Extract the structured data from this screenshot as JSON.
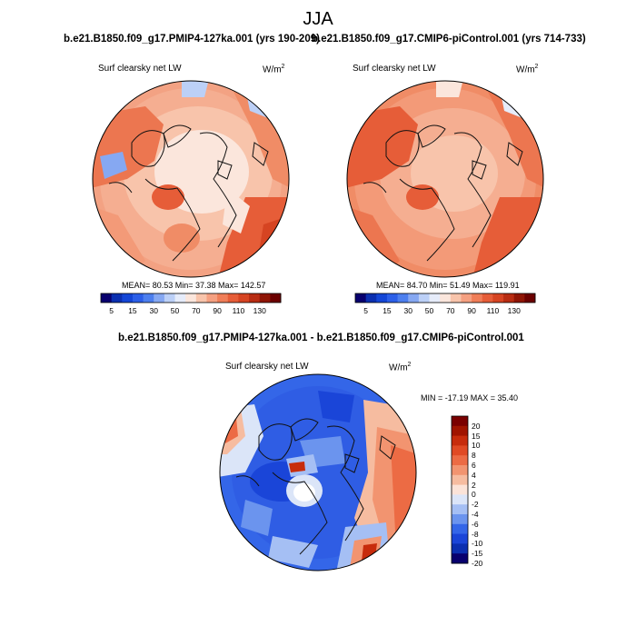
{
  "page": {
    "title": "JJA"
  },
  "panels": [
    {
      "case_title": "b.e21.B1850.f09_g17.PMIP4-127ka.001 (yrs 190-209)",
      "variable": "Surf clearsky net LW",
      "units_base": "W/m",
      "units_exp": "2",
      "stats": "MEAN=  80.53  Min=  37.38  Max= 142.57"
    },
    {
      "case_title": "b.e21.B1850.f09_g17.CMIP6-piControl.001 (yrs 714-733)",
      "variable": "Surf clearsky net LW",
      "units_base": "W/m",
      "units_exp": "2",
      "stats": "MEAN=  84.70  Min=  51.49  Max= 119.91"
    }
  ],
  "diff_panel": {
    "case_title": "b.e21.B1850.f09_g17.PMIP4-127ka.001 - b.e21.B1850.f09_g17.CMIP6-piControl.001",
    "variable": "Surf clearsky net LW",
    "units_base": "W/m",
    "units_exp": "2",
    "stats": "MIN = -17.19 MAX =  35.40"
  },
  "colors": {
    "abs_colorbar": [
      "#08006e",
      "#0b2fb0",
      "#1446d6",
      "#2c5fe8",
      "#4d7fee",
      "#86a8f2",
      "#bcd0f7",
      "#e6ecfa",
      "#fbe6dc",
      "#f8c4ab",
      "#f5a081",
      "#f07e58",
      "#e65d38",
      "#d64422",
      "#b82c12",
      "#8f1505",
      "#6b0000"
    ],
    "diff_colorbar": [
      "#08006e",
      "#0b2fb0",
      "#1a45d8",
      "#3466e8",
      "#6b94ee",
      "#a5bff4",
      "#dbe5f8",
      "#fbe3d8",
      "#f6bca0",
      "#f29470",
      "#ec6b44",
      "#e04a24",
      "#c72c0c",
      "#a01400",
      "#7a0000"
    ],
    "coast": "#111111"
  },
  "chart_data": [
    {
      "type": "heatmap",
      "title": "b.e21.B1850.f09_g17.PMIP4-127ka.001 (yrs 190-209)",
      "variable": "Surf clearsky net LW",
      "units": "W/m2",
      "projection": "north polar stereographic",
      "colorbar_ticks": [
        "5",
        "15",
        "30",
        "50",
        "70",
        "90",
        "110",
        "130"
      ],
      "stats": {
        "mean": 80.53,
        "min": 37.38,
        "max": 142.57
      }
    },
    {
      "type": "heatmap",
      "title": "b.e21.B1850.f09_g17.CMIP6-piControl.001 (yrs 714-733)",
      "variable": "Surf clearsky net LW",
      "units": "W/m2",
      "projection": "north polar stereographic",
      "colorbar_ticks": [
        "5",
        "15",
        "30",
        "50",
        "70",
        "90",
        "110",
        "130"
      ],
      "stats": {
        "mean": 84.7,
        "min": 51.49,
        "max": 119.91
      }
    },
    {
      "type": "heatmap",
      "title": "b.e21.B1850.f09_g17.PMIP4-127ka.001 - b.e21.B1850.f09_g17.CMIP6-piControl.001",
      "variable": "Surf clearsky net LW",
      "units": "W/m2",
      "projection": "north polar stereographic",
      "colorbar_ticks": [
        "20",
        "15",
        "10",
        "8",
        "6",
        "4",
        "2",
        "0",
        "-2",
        "-4",
        "-6",
        "-8",
        "-10",
        "-15",
        "-20"
      ],
      "stats": {
        "min": -17.19,
        "max": 35.4
      }
    }
  ]
}
